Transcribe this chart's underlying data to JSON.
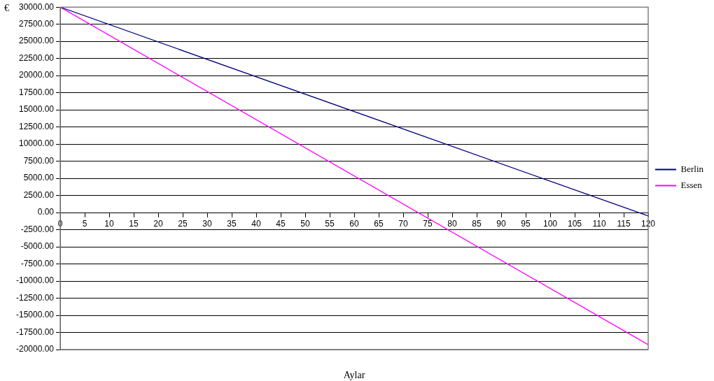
{
  "chart_data": {
    "type": "line",
    "xlabel": "Aylar",
    "ylabel": "€",
    "x": [
      0,
      120
    ],
    "series": [
      {
        "name": "Berlin",
        "color": "#000080",
        "values": [
          30000,
          -500
        ]
      },
      {
        "name": "Essen",
        "color": "#ff00ff",
        "values": [
          30000,
          -19300
        ]
      }
    ],
    "xlim": [
      0,
      120
    ],
    "xticks": [
      0,
      5,
      10,
      15,
      20,
      25,
      30,
      35,
      40,
      45,
      50,
      55,
      60,
      65,
      70,
      75,
      80,
      85,
      90,
      95,
      100,
      105,
      110,
      115,
      120
    ],
    "ylim": [
      -20000,
      30000
    ],
    "yticks": [
      {
        "value": -20000,
        "label": "-20000.00"
      },
      {
        "value": -17500,
        "label": "-17500.00"
      },
      {
        "value": -15000,
        "label": "-15000.00"
      },
      {
        "value": -12500,
        "label": "-12500.00"
      },
      {
        "value": -10000,
        "label": "-10000.00"
      },
      {
        "value": -7500,
        "label": "-7500.00"
      },
      {
        "value": -5000,
        "label": "-5000.00"
      },
      {
        "value": -2500,
        "label": "-2500.00"
      },
      {
        "value": 0,
        "label": "0.00"
      },
      {
        "value": 2500,
        "label": "2500.00"
      },
      {
        "value": 5000,
        "label": "5000.00"
      },
      {
        "value": 7500,
        "label": "7500.00"
      },
      {
        "value": 10000,
        "label": "10000.00"
      },
      {
        "value": 12500,
        "label": "12500.00"
      },
      {
        "value": 15000,
        "label": "15000.00"
      },
      {
        "value": 17500,
        "label": "17500.00"
      },
      {
        "value": 20000,
        "label": "20000.00"
      },
      {
        "value": 22500,
        "label": "22500.00"
      },
      {
        "value": 25000,
        "label": "25000.00"
      },
      {
        "value": 27500,
        "label": "27500.00"
      },
      {
        "value": 30000,
        "label": "30000.00"
      }
    ],
    "grid": "y",
    "legend": "right",
    "marker": "none",
    "line_style": "solid"
  }
}
